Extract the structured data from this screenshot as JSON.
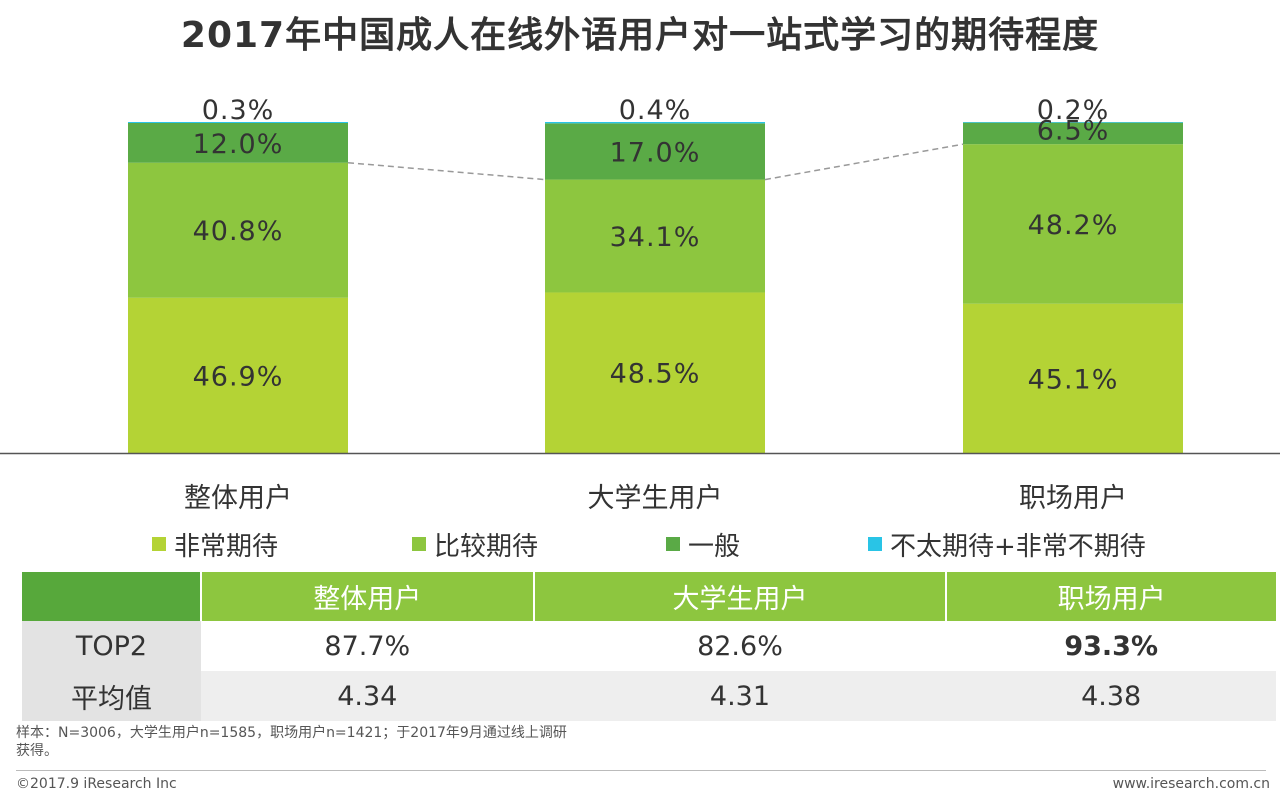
{
  "title": "2017年中国成人在线外语用户对一站式学习的期待程度",
  "chart_data": {
    "type": "bar",
    "stacked": true,
    "title": "2017年中国成人在线外语用户对一站式学习的期待程度",
    "categories": [
      "整体用户",
      "大学生用户",
      "职场用户"
    ],
    "series": [
      {
        "name": "非常期待",
        "color": "#b4d335",
        "values": [
          46.9,
          48.5,
          45.1
        ],
        "labels": [
          "46.9%",
          "48.5%",
          "45.1%"
        ]
      },
      {
        "name": "比较期待",
        "color": "#8dc63f",
        "values": [
          40.8,
          34.1,
          48.2
        ],
        "labels": [
          "40.8%",
          "34.1%",
          "48.2%"
        ]
      },
      {
        "name": "一般",
        "color": "#5aaa46",
        "values": [
          12.0,
          17.0,
          6.5
        ],
        "labels": [
          "12.0%",
          "17.0%",
          "6.5%"
        ]
      },
      {
        "name": "不太期待+非常不期待",
        "color": "#29c4e6",
        "values": [
          0.3,
          0.4,
          0.2
        ],
        "labels": [
          "0.3%",
          "0.4%",
          "0.2%"
        ]
      }
    ],
    "ylim": [
      0,
      100
    ],
    "xlabel": "",
    "ylabel": "",
    "legend_position": "bottom"
  },
  "table": {
    "headers": [
      "整体用户",
      "大学生用户",
      "职场用户"
    ],
    "rows": [
      {
        "label": "TOP2",
        "values": [
          "87.7%",
          "82.6%",
          "93.3%"
        ]
      },
      {
        "label": "平均值",
        "values": [
          "4.34",
          "4.31",
          "4.38"
        ]
      }
    ]
  },
  "note_line1": "样本：N=3006，大学生用户n=1585，职场用户n=1421；于2017年9月通过线上调研",
  "note_line2": "获得。",
  "footer_left": "©2017.9  iResearch Inc",
  "footer_right": "www.iresearch.com.cn"
}
